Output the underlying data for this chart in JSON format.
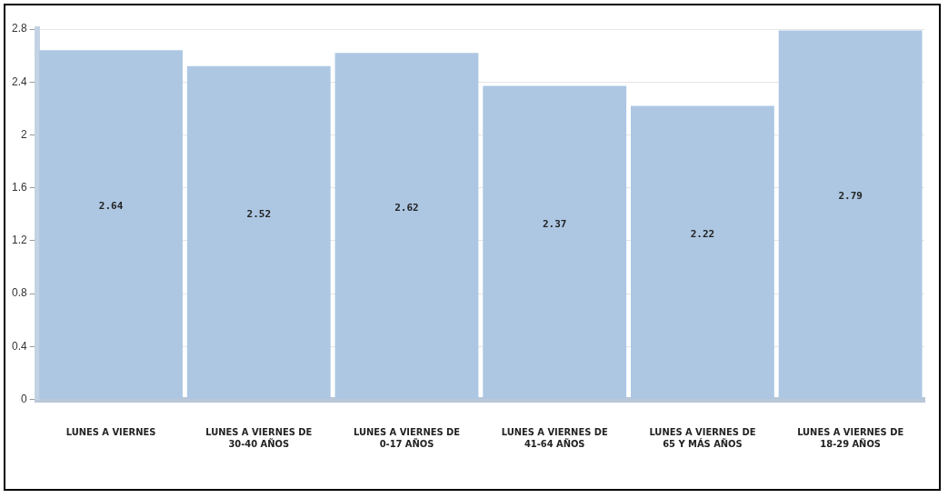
{
  "chart_data": {
    "type": "bar",
    "categories": [
      "LUNES A VIERNES",
      "LUNES A VIERNES DE 30-40 AÑOS",
      "LUNES A VIERNES DE 0-17 AÑOS",
      "LUNES A VIERNES DE 41-64 AÑOS",
      "LUNES A VIERNES DE 65 Y MÁS AÑOS",
      "LUNES A VIERNES DE 18-29 AÑOS"
    ],
    "values": [
      2.64,
      2.52,
      2.62,
      2.37,
      2.22,
      2.79
    ],
    "color": "#adc7e3",
    "ylim": [
      0,
      2.8
    ],
    "yticks": [
      0,
      0.4,
      0.8,
      1.2,
      1.6,
      2,
      2.4,
      2.8
    ],
    "grid": "y",
    "data_labels": true,
    "legend": false
  }
}
